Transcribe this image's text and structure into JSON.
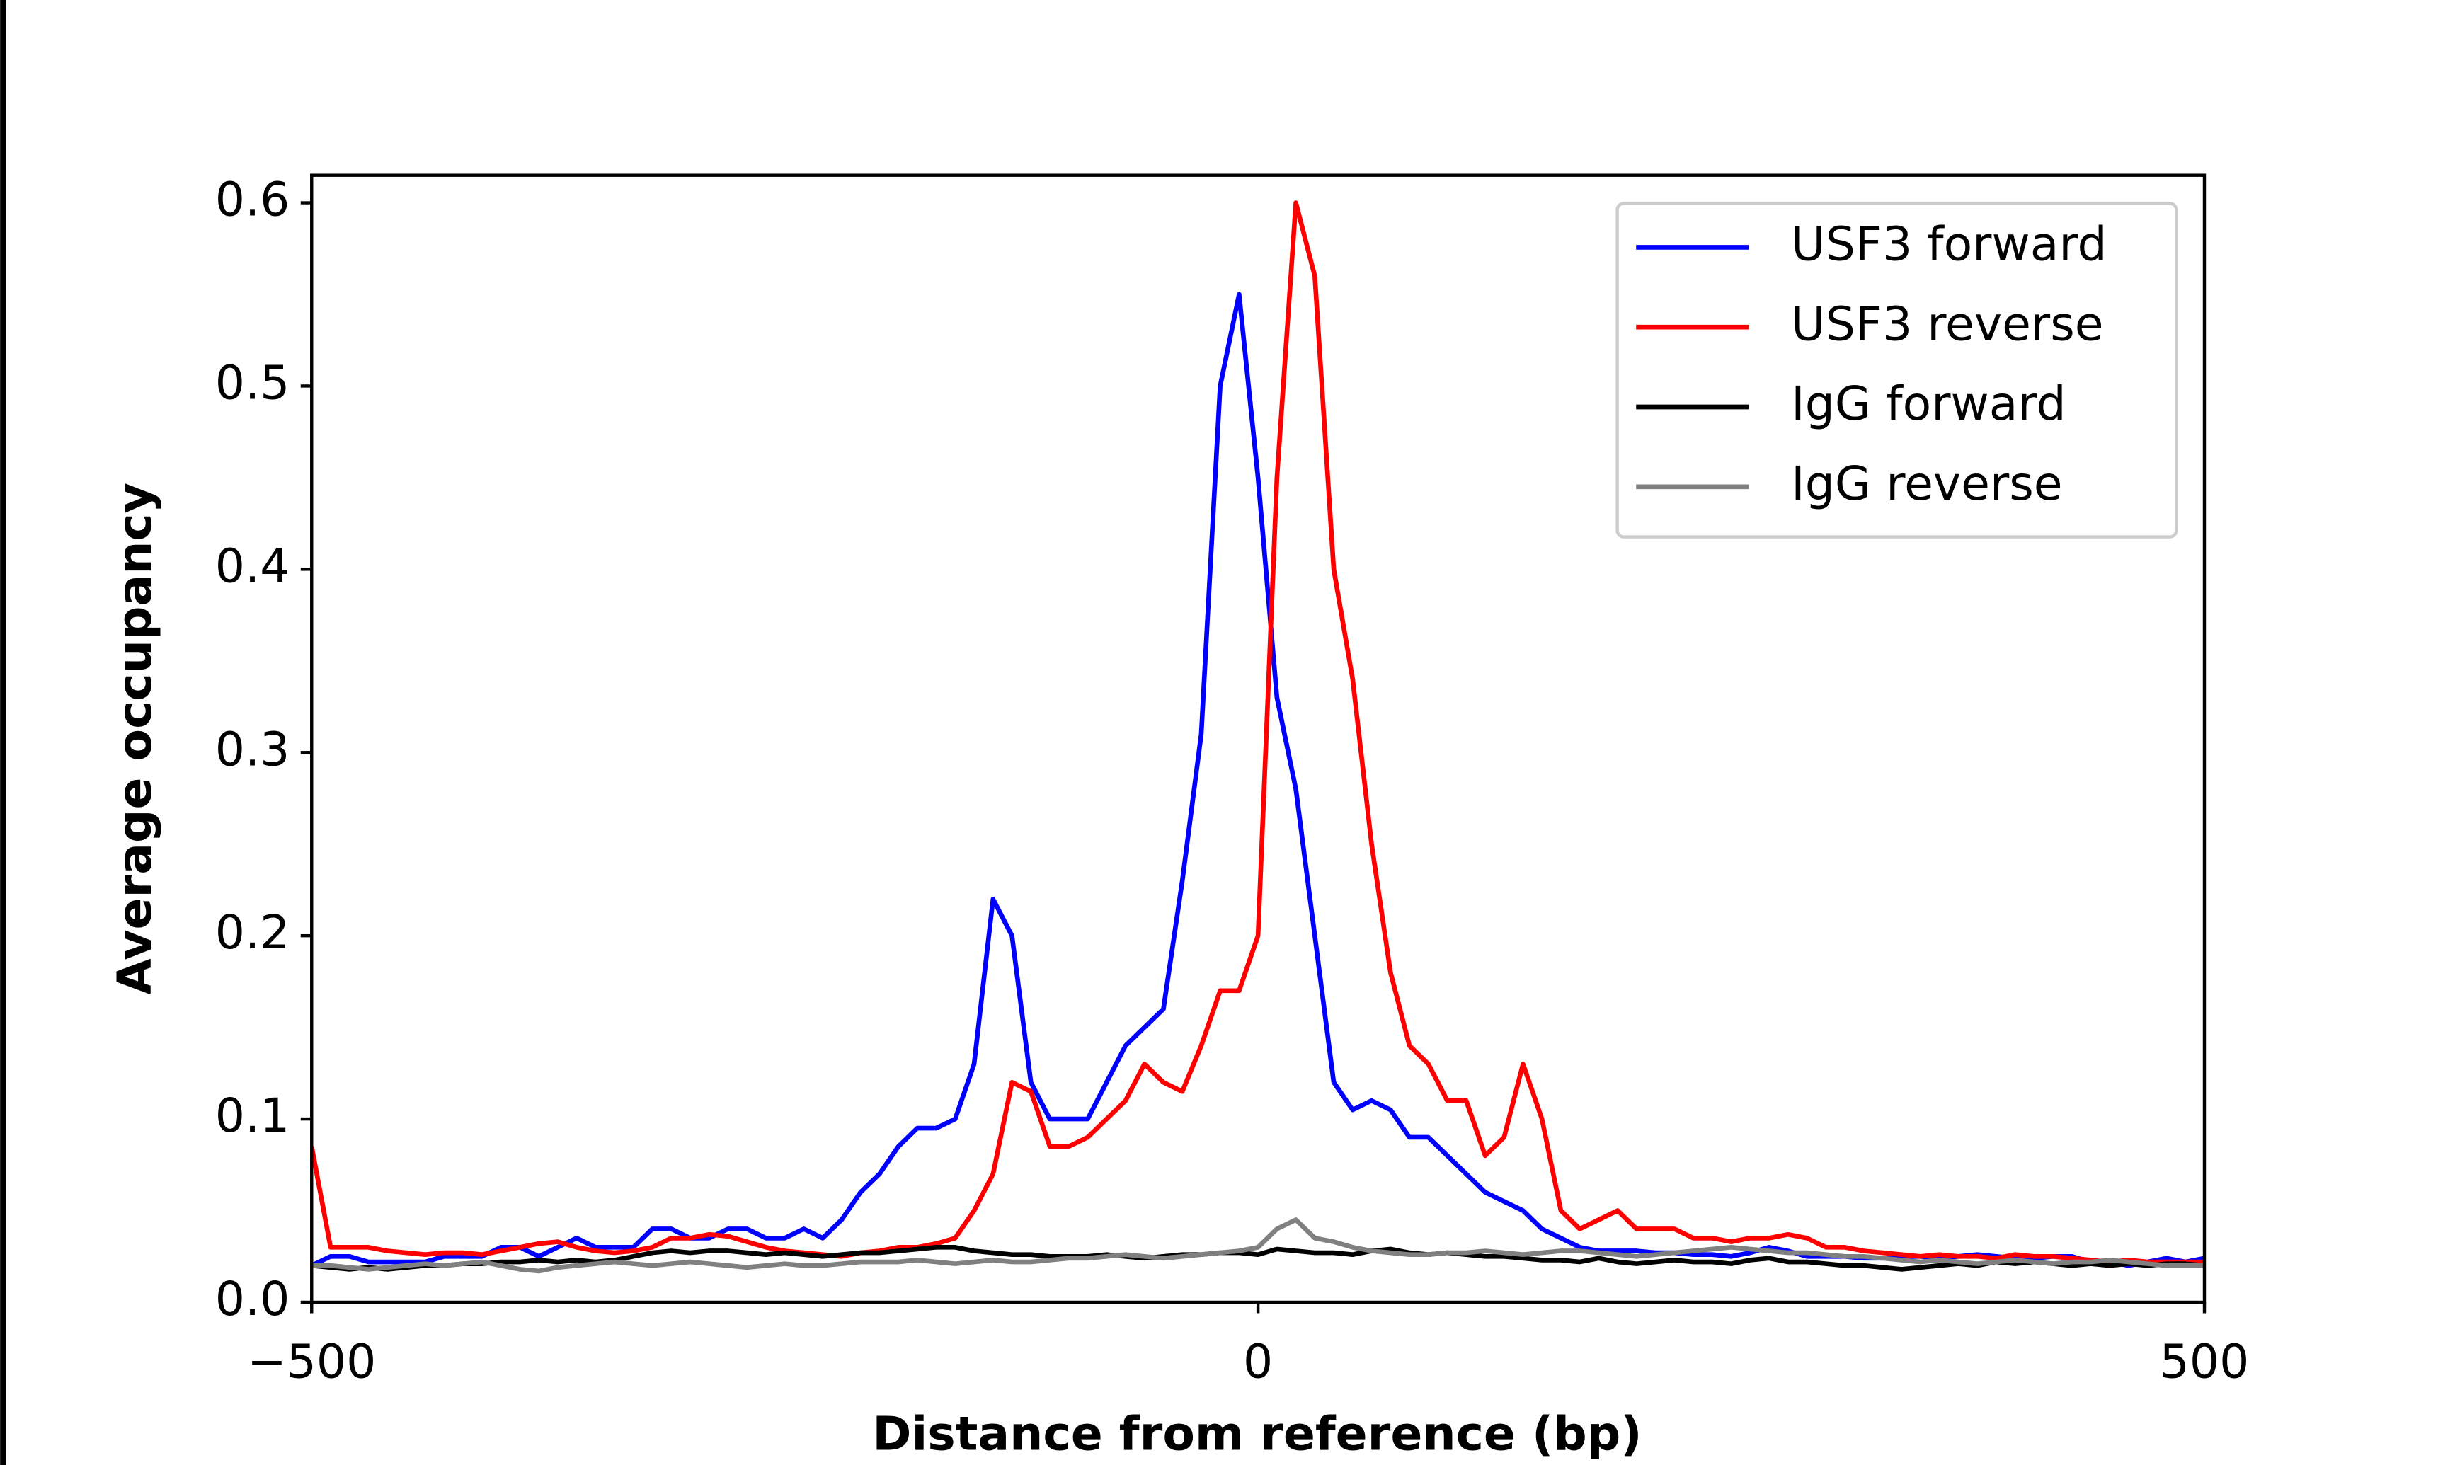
{
  "chart_data": {
    "type": "line",
    "xlabel": "Distance from reference (bp)",
    "ylabel": "Average occupancy",
    "xlim": [
      -500,
      500
    ],
    "ylim": [
      0,
      0.615
    ],
    "xticks": [
      {
        "value": -500,
        "label": "−500"
      },
      0,
      500
    ],
    "yticks": [
      {
        "value": 0,
        "label": "0.0"
      },
      0.1,
      0.2,
      0.3,
      0.4,
      0.5,
      0.6
    ],
    "legend": "upper right",
    "x": [
      -500,
      -490,
      -480,
      -470,
      -460,
      -450,
      -440,
      -430,
      -420,
      -410,
      -400,
      -390,
      -380,
      -370,
      -360,
      -350,
      -340,
      -330,
      -320,
      -310,
      -300,
      -290,
      -280,
      -270,
      -260,
      -250,
      -240,
      -230,
      -220,
      -210,
      -200,
      -190,
      -180,
      -170,
      -160,
      -150,
      -140,
      -130,
      -120,
      -110,
      -100,
      -90,
      -80,
      -70,
      -60,
      -50,
      -40,
      -30,
      -20,
      -10,
      0,
      10,
      20,
      30,
      40,
      50,
      60,
      70,
      80,
      90,
      100,
      110,
      120,
      130,
      140,
      150,
      160,
      170,
      180,
      190,
      200,
      210,
      220,
      230,
      240,
      250,
      260,
      270,
      280,
      290,
      300,
      310,
      320,
      330,
      340,
      350,
      360,
      370,
      380,
      390,
      400,
      410,
      420,
      430,
      440,
      450,
      460,
      470,
      480,
      490,
      500
    ],
    "series": [
      {
        "name": "USF3 forward",
        "color": "#0000ff",
        "values": [
          0.02,
          0.025,
          0.025,
          0.022,
          0.022,
          0.022,
          0.022,
          0.025,
          0.025,
          0.025,
          0.03,
          0.03,
          0.025,
          0.03,
          0.035,
          0.03,
          0.03,
          0.03,
          0.04,
          0.04,
          0.035,
          0.035,
          0.04,
          0.04,
          0.035,
          0.035,
          0.04,
          0.035,
          0.045,
          0.06,
          0.07,
          0.085,
          0.095,
          0.095,
          0.1,
          0.13,
          0.22,
          0.2,
          0.12,
          0.1,
          0.1,
          0.1,
          0.12,
          0.14,
          0.15,
          0.16,
          0.23,
          0.31,
          0.5,
          0.55,
          0.45,
          0.33,
          0.28,
          0.2,
          0.12,
          0.105,
          0.11,
          0.105,
          0.09,
          0.09,
          0.08,
          0.07,
          0.06,
          0.055,
          0.05,
          0.04,
          0.035,
          0.03,
          0.028,
          0.028,
          0.028,
          0.027,
          0.027,
          0.026,
          0.026,
          0.025,
          0.027,
          0.03,
          0.028,
          0.025,
          0.025,
          0.025,
          0.024,
          0.024,
          0.025,
          0.025,
          0.024,
          0.025,
          0.026,
          0.025,
          0.024,
          0.024,
          0.025,
          0.025,
          0.022,
          0.022,
          0.02,
          0.022,
          0.024,
          0.022,
          0.024
        ]
      },
      {
        "name": "USF3 reverse",
        "color": "#ff0000",
        "values": [
          0.085,
          0.03,
          0.03,
          0.03,
          0.028,
          0.027,
          0.026,
          0.027,
          0.027,
          0.026,
          0.028,
          0.03,
          0.032,
          0.033,
          0.03,
          0.028,
          0.027,
          0.028,
          0.03,
          0.035,
          0.035,
          0.037,
          0.036,
          0.033,
          0.03,
          0.028,
          0.027,
          0.026,
          0.025,
          0.027,
          0.028,
          0.03,
          0.03,
          0.032,
          0.035,
          0.05,
          0.07,
          0.12,
          0.115,
          0.085,
          0.085,
          0.09,
          0.1,
          0.11,
          0.13,
          0.12,
          0.115,
          0.14,
          0.17,
          0.17,
          0.2,
          0.45,
          0.6,
          0.56,
          0.4,
          0.34,
          0.25,
          0.18,
          0.14,
          0.13,
          0.11,
          0.11,
          0.08,
          0.09,
          0.13,
          0.1,
          0.05,
          0.04,
          0.045,
          0.05,
          0.04,
          0.04,
          0.04,
          0.035,
          0.035,
          0.033,
          0.035,
          0.035,
          0.037,
          0.035,
          0.03,
          0.03,
          0.028,
          0.027,
          0.026,
          0.025,
          0.026,
          0.025,
          0.025,
          0.024,
          0.026,
          0.025,
          0.025,
          0.024,
          0.023,
          0.022,
          0.023,
          0.022,
          0.022,
          0.022,
          0.022
        ]
      },
      {
        "name": "IgG forward",
        "color": "#000000",
        "values": [
          0.02,
          0.019,
          0.018,
          0.019,
          0.018,
          0.019,
          0.02,
          0.02,
          0.021,
          0.021,
          0.022,
          0.022,
          0.023,
          0.022,
          0.023,
          0.022,
          0.023,
          0.025,
          0.027,
          0.028,
          0.027,
          0.028,
          0.028,
          0.027,
          0.026,
          0.027,
          0.026,
          0.025,
          0.026,
          0.027,
          0.027,
          0.028,
          0.029,
          0.03,
          0.03,
          0.028,
          0.027,
          0.026,
          0.026,
          0.025,
          0.025,
          0.025,
          0.026,
          0.025,
          0.024,
          0.025,
          0.026,
          0.026,
          0.027,
          0.027,
          0.026,
          0.029,
          0.028,
          0.027,
          0.027,
          0.026,
          0.028,
          0.029,
          0.027,
          0.026,
          0.027,
          0.026,
          0.025,
          0.025,
          0.024,
          0.023,
          0.023,
          0.022,
          0.024,
          0.022,
          0.021,
          0.022,
          0.023,
          0.022,
          0.022,
          0.021,
          0.023,
          0.024,
          0.022,
          0.022,
          0.021,
          0.02,
          0.02,
          0.019,
          0.018,
          0.019,
          0.02,
          0.021,
          0.02,
          0.022,
          0.021,
          0.022,
          0.021,
          0.02,
          0.021,
          0.02,
          0.021,
          0.02,
          0.021,
          0.021,
          0.02
        ]
      },
      {
        "name": "IgG reverse",
        "color": "#808080",
        "values": [
          0.02,
          0.02,
          0.019,
          0.018,
          0.019,
          0.02,
          0.021,
          0.02,
          0.021,
          0.022,
          0.02,
          0.018,
          0.017,
          0.019,
          0.02,
          0.021,
          0.022,
          0.021,
          0.02,
          0.021,
          0.022,
          0.021,
          0.02,
          0.019,
          0.02,
          0.021,
          0.02,
          0.02,
          0.021,
          0.022,
          0.022,
          0.022,
          0.023,
          0.022,
          0.021,
          0.022,
          0.023,
          0.022,
          0.022,
          0.023,
          0.024,
          0.024,
          0.025,
          0.026,
          0.025,
          0.024,
          0.025,
          0.026,
          0.027,
          0.028,
          0.03,
          0.04,
          0.045,
          0.035,
          0.033,
          0.03,
          0.028,
          0.027,
          0.026,
          0.026,
          0.027,
          0.027,
          0.028,
          0.027,
          0.026,
          0.027,
          0.028,
          0.028,
          0.027,
          0.026,
          0.025,
          0.026,
          0.027,
          0.028,
          0.029,
          0.03,
          0.029,
          0.028,
          0.027,
          0.027,
          0.026,
          0.025,
          0.025,
          0.024,
          0.023,
          0.022,
          0.023,
          0.022,
          0.021,
          0.022,
          0.023,
          0.022,
          0.021,
          0.022,
          0.022,
          0.023,
          0.022,
          0.021,
          0.02,
          0.02,
          0.02
        ]
      }
    ]
  }
}
